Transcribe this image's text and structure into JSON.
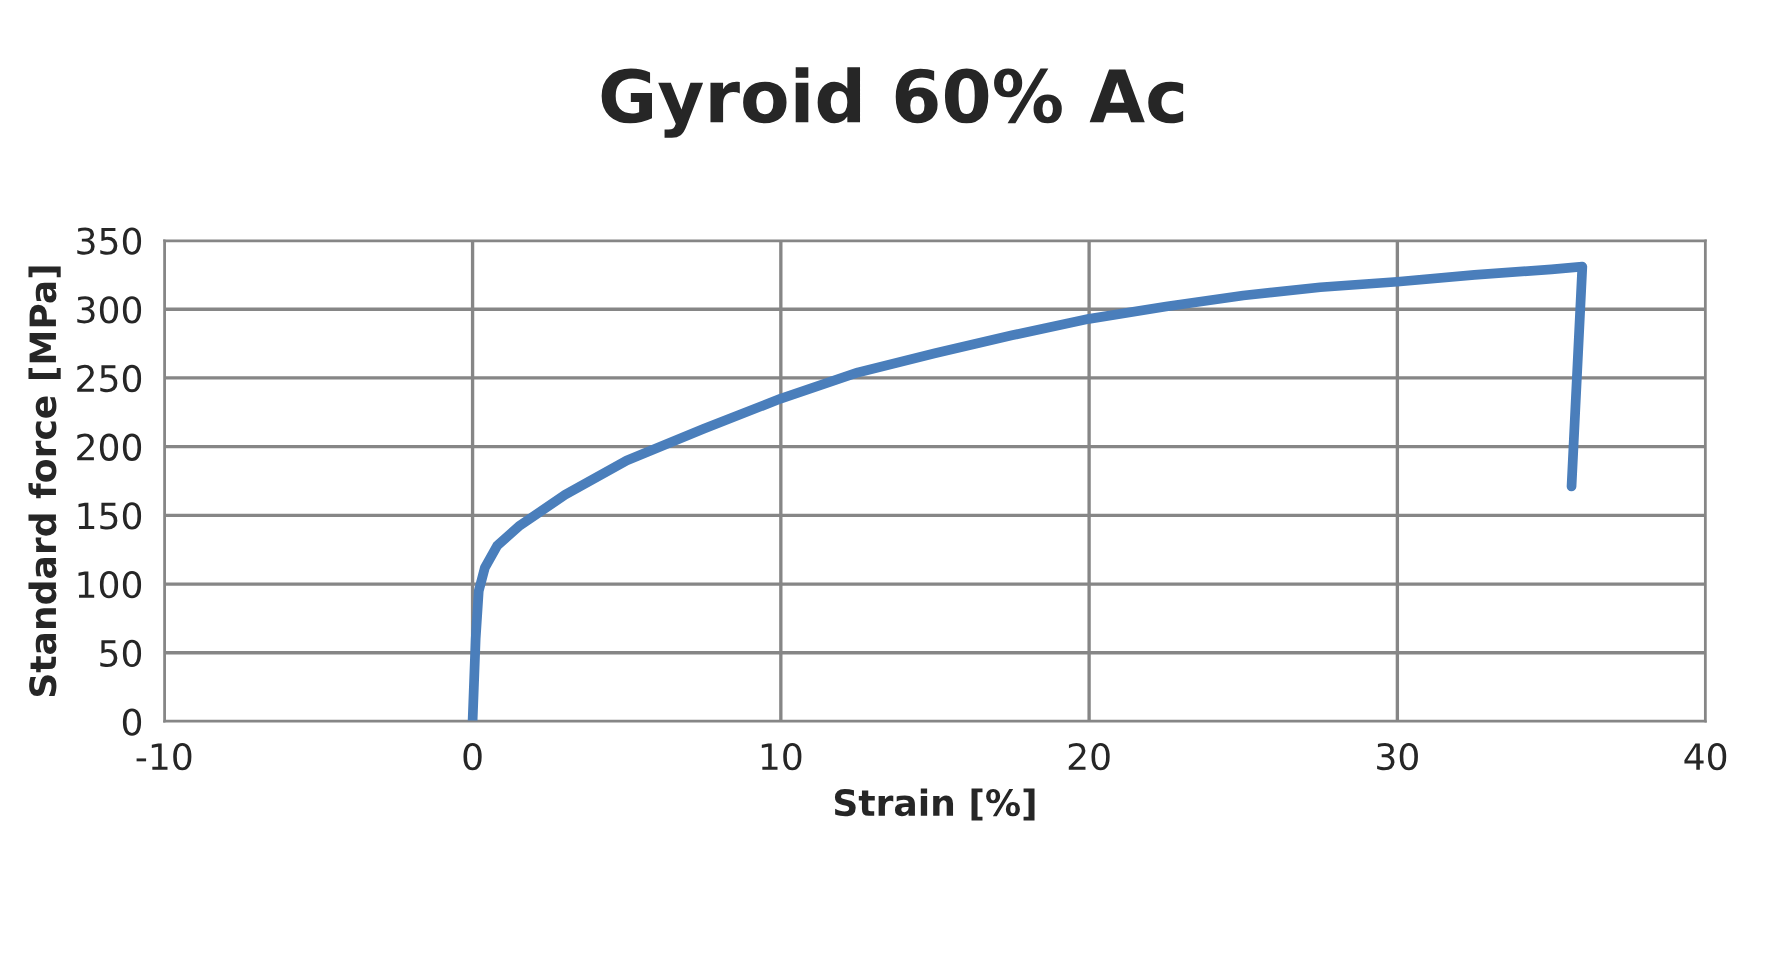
{
  "chart_data": {
    "type": "line",
    "title": "Gyroid 60% Ac",
    "xlabel": "Strain [%]",
    "ylabel": "Standard force [MPa]",
    "series": [
      {
        "color": "#4a7ebb",
        "x": [
          0,
          0.05,
          0.1,
          0.2,
          0.4,
          0.8,
          1.5,
          3,
          5,
          7.5,
          10,
          12.5,
          15,
          17.5,
          20,
          22.5,
          25,
          27.5,
          30,
          32.5,
          35,
          36.0,
          35.65
        ],
        "values": [
          0,
          30,
          60,
          95,
          112,
          128,
          142,
          165,
          190,
          213,
          235,
          254,
          268,
          281,
          293,
          302,
          310,
          316,
          320,
          325,
          329,
          331,
          171
        ]
      }
    ],
    "xlim": [
      -10,
      40
    ],
    "xticks": [
      -10,
      0,
      10,
      20,
      30,
      40
    ],
    "ylim": [
      0,
      350
    ],
    "yticks": [
      0,
      50,
      100,
      150,
      200,
      250,
      300,
      350
    ],
    "grid": true,
    "legend": false,
    "marker": "none",
    "line_style": "solid"
  }
}
